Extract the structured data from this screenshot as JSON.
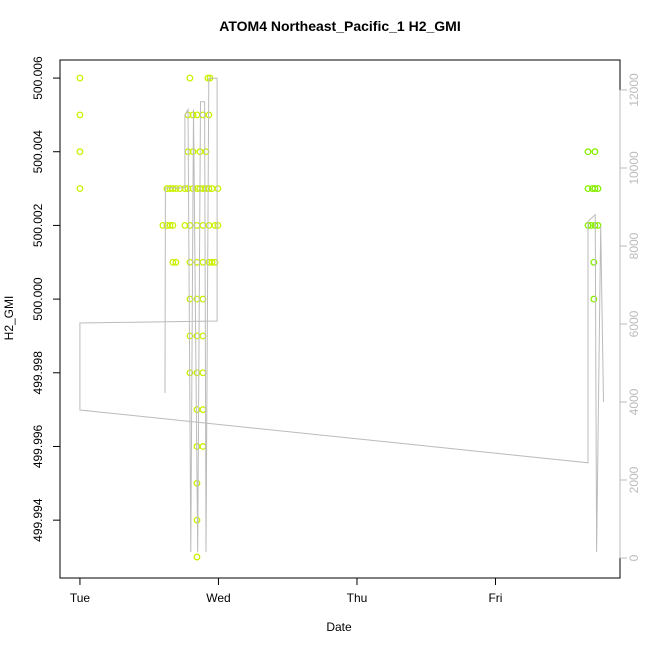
{
  "chart_data": {
    "type": "scatter",
    "title": "ATOM4 Northeast_Pacific_1 H2_GMI",
    "x_label": "Date",
    "y_label": "H2_GMI",
    "xlim": [
      -0.144,
      3.899
    ],
    "xticks": [
      {
        "value": 0,
        "label": "Tue"
      },
      {
        "value": 1,
        "label": "Wed"
      },
      {
        "value": 2,
        "label": "Thu"
      },
      {
        "value": 3,
        "label": "Fri"
      }
    ],
    "ylim": [
      499.99243,
      500.00649
    ],
    "yticks": [
      499.994,
      499.996,
      499.998,
      {
        "value": 500,
        "label": "500.000"
      },
      500.002,
      500.004,
      500.006
    ],
    "y2lim": [
      -513,
      12769
    ],
    "y2ticks": [
      0,
      2000,
      4000,
      6000,
      8000,
      10000,
      12000
    ],
    "series": [
      {
        "color": "#ccf000",
        "x": [
          0,
          0,
          0,
          0,
          0.599,
          0.628,
          0.65,
          0.671,
          0.628,
          0.65,
          0.671,
          0.693,
          0.722,
          0.758,
          0.78,
          0.816,
          0.845,
          0.866,
          0.888,
          0.91,
          0.931,
          0.953,
          0.996,
          0.758,
          0.794,
          0.845,
          0.888,
          0.931,
          0.975,
          0.996,
          0.671,
          0.693,
          0.794,
          0.845,
          0.888,
          0.931,
          0.953,
          0.975,
          0.794,
          0.924,
          0.939,
          0.78,
          0.816,
          0.845,
          0.888,
          0.931,
          0.78,
          0.816,
          0.866,
          0.91,
          0.794,
          0.845,
          0.888,
          0.794,
          0.845,
          0.888,
          0.794,
          0.845,
          0.888,
          0.845,
          0.888,
          0.845,
          0.888,
          0.845,
          0.845,
          0.845
        ],
        "values": [
          500.006,
          500.005,
          500.004,
          500.003,
          500.002,
          500.002,
          500.002,
          500.002,
          500.003,
          500.003,
          500.003,
          500.003,
          500.003,
          500.003,
          500.003,
          500.003,
          500.003,
          500.003,
          500.003,
          500.003,
          500.003,
          500.003,
          500.003,
          500.002,
          500.002,
          500.002,
          500.002,
          500.002,
          500.002,
          500.002,
          500.001,
          500.001,
          500.001,
          500.001,
          500.001,
          500.001,
          500.001,
          500.001,
          500.006,
          500.006,
          500.006,
          500.005,
          500.005,
          500.005,
          500.005,
          500.005,
          500.004,
          500.004,
          500.004,
          500.004,
          500,
          500,
          500,
          499.999,
          499.999,
          499.999,
          499.998,
          499.998,
          499.998,
          499.997,
          499.997,
          499.996,
          499.996,
          499.995,
          499.994,
          499.993
        ]
      },
      {
        "color": "#88ee00",
        "x": [
          3.668,
          3.718,
          3.668,
          3.7,
          3.718,
          3.74,
          3.668,
          3.69,
          3.718,
          3.74,
          3.71,
          3.71
        ],
        "values": [
          500.004,
          500.004,
          500.003,
          500.003,
          500.003,
          500.003,
          500.002,
          500.002,
          500.002,
          500.002,
          500.001,
          500
        ]
      },
      {
        "type": "line",
        "axis": "y2",
        "color": "#bbbbbb",
        "x": [
          0.614,
          0.617,
          0.758,
          0.758,
          0.78,
          0.8,
          0.82,
          0.85,
          0.87,
          0.9,
          0.91,
          0.93,
          0.99,
          0.99,
          0,
          0,
          3.668,
          3.668,
          3.72,
          3.73,
          3.76,
          3.78
        ],
        "values": [
          4230,
          9490,
          9490,
          11360,
          11500,
          150,
          11500,
          150,
          11700,
          11700,
          150,
          12300,
          12300,
          6077,
          6026,
          3795,
          2440,
          8630,
          8800,
          150,
          8500,
          4000
        ]
      }
    ]
  }
}
